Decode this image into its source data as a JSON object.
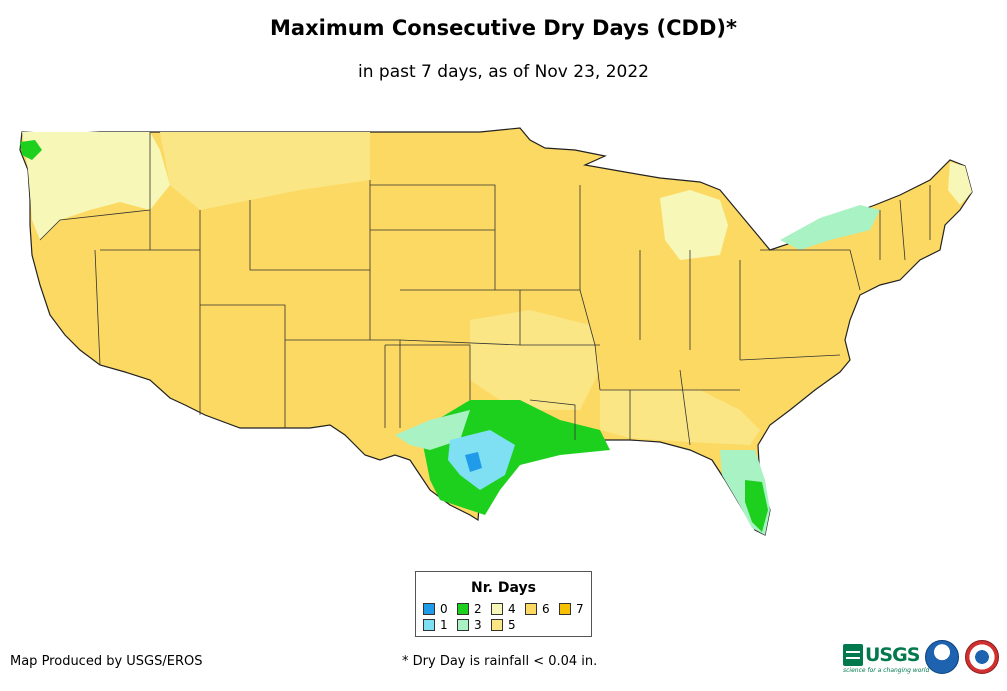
{
  "title": "Maximum Consecutive Dry Days (CDD)*",
  "subtitle": "in past 7 days, as of Nov 23, 2022",
  "legend": {
    "title": "Nr. Days",
    "items": [
      {
        "label": "0",
        "color": "#1f9bea"
      },
      {
        "label": "1",
        "color": "#7fe0f4"
      },
      {
        "label": "2",
        "color": "#1ed01e"
      },
      {
        "label": "3",
        "color": "#a9f2c4"
      },
      {
        "label": "4",
        "color": "#f7f7b8"
      },
      {
        "label": "5",
        "color": "#fbe686"
      },
      {
        "label": "6",
        "color": "#fcd962"
      },
      {
        "label": "7",
        "color": "#f7c000"
      }
    ]
  },
  "footer": {
    "credit": "Map Produced by USGS/EROS",
    "note": "* Dry Day is rainfall < 0.04 in."
  },
  "logos": {
    "usgs_text": "USGS",
    "usgs_tagline": "science for a changing world",
    "noaa": "noaa-logo",
    "nws": "nws-logo"
  },
  "map": {
    "base_value_days": 6,
    "regions": [
      {
        "name": "Pacific Northwest",
        "days": 4
      },
      {
        "name": "Michigan",
        "days": 4
      },
      {
        "name": "Arkansas / east Oklahoma",
        "days": 5
      },
      {
        "name": "Texas Gulf coast",
        "days": 1
      },
      {
        "name": "Southeast Texas / Louisiana",
        "days": 2
      },
      {
        "name": "Florida",
        "days": 3
      },
      {
        "name": "New York / New England",
        "days": 3
      }
    ]
  }
}
